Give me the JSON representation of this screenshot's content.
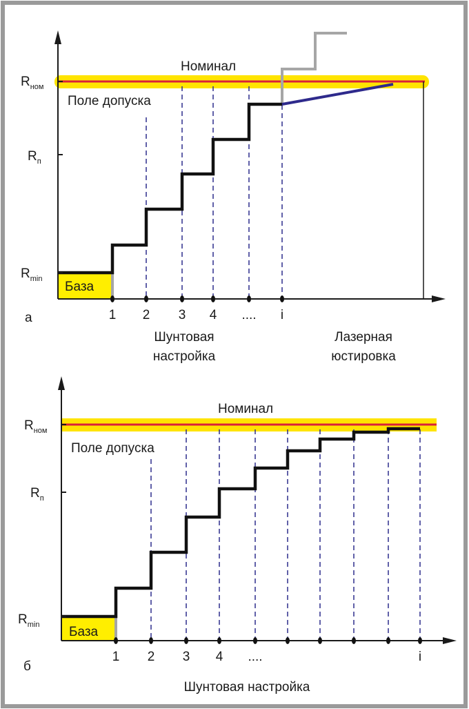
{
  "panel_a": {
    "panel_label": "а",
    "nominal_label": "Номинал",
    "tolerance_label": "Поле допуска",
    "base_label": "База",
    "y_labels": {
      "r_nom": "R",
      "r_nom_sub": "ном",
      "r_p": "R",
      "r_p_sub": "п",
      "r_min": "R",
      "r_min_sub": "min"
    },
    "x_ticks": [
      "1",
      "2",
      "3",
      "4",
      "....",
      "i"
    ],
    "shunt_label_line1": "Шунтовая",
    "shunt_label_line2": "настройка",
    "laser_label_line1": "Лазерная",
    "laser_label_line2": "юстировка"
  },
  "panel_b": {
    "panel_label": "б",
    "nominal_label": "Номинал",
    "tolerance_label": "Поле допуска",
    "base_label": "База",
    "y_labels": {
      "r_nom": "R",
      "r_nom_sub": "ном",
      "r_p": "R",
      "r_p_sub": "п",
      "r_min": "R",
      "r_min_sub": "min"
    },
    "x_ticks": [
      "1",
      "2",
      "3",
      "4",
      "....",
      "i"
    ],
    "shunt_label": "Шунтовая настройка"
  },
  "colors": {
    "frame": "#9a9a9a",
    "axis": "#1a1a1a",
    "step": "#111111",
    "nominal_band": "#ffe400",
    "nominal_line": "#d9203a",
    "dashed": "#2c2c8c",
    "laser": "#2e2a8c",
    "gray_step": "#a6a6a6",
    "base_fill": "#ffee00"
  }
}
